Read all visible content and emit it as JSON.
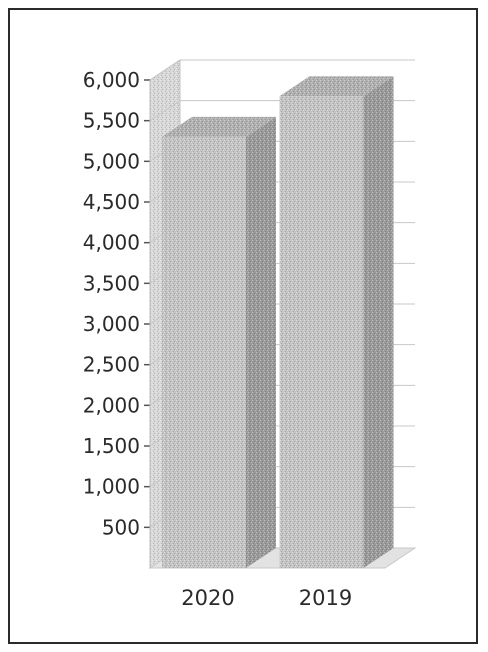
{
  "chart_data": {
    "type": "bar",
    "style": "3d-column",
    "categories": [
      "2020",
      "2019"
    ],
    "values": [
      5300,
      5800
    ],
    "ylim": [
      0,
      6000
    ],
    "yticks": [
      500,
      1000,
      1500,
      2000,
      2500,
      3000,
      3500,
      4000,
      4500,
      5000,
      5500,
      6000
    ],
    "ytick_labels": [
      "500",
      "1,000",
      "1,500",
      "2,000",
      "2,500",
      "3,000",
      "3,500",
      "4,000",
      "4,500",
      "5,000",
      "5,500",
      "6,000"
    ],
    "title": "",
    "xlabel": "",
    "ylabel": "",
    "grid": true,
    "legend": "none",
    "colors": {
      "bar_front": "#c4c4c4",
      "bar_side": "#9a9a9a",
      "bar_top": "#b0b0b0",
      "grid": "#c8c8c8",
      "text": "#2a2a2a"
    }
  }
}
